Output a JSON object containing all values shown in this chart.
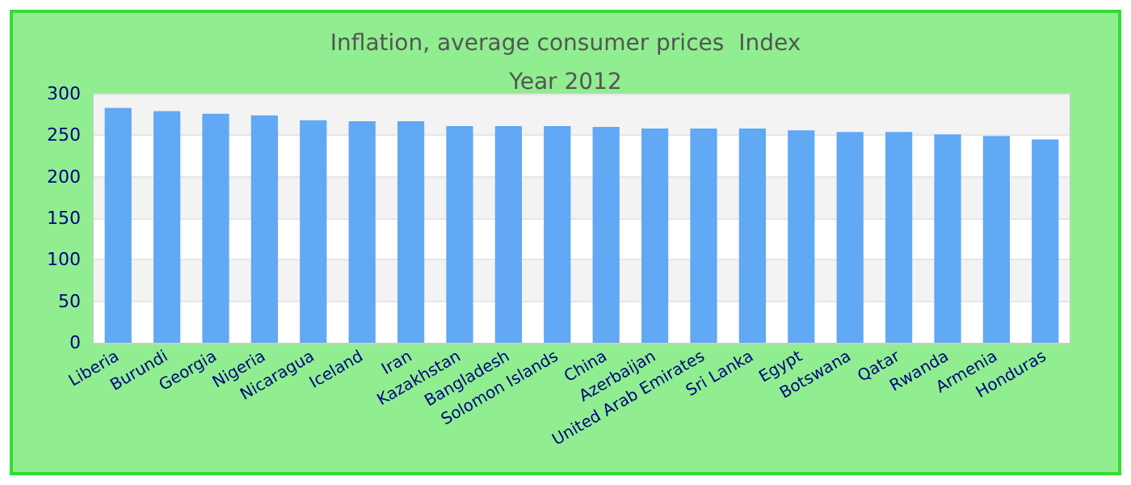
{
  "chart_data": {
    "type": "bar",
    "title": "Inflation, average consumer prices  Index",
    "subtitle": "Year 2012",
    "categories": [
      "Liberia",
      "Burundi",
      "Georgia",
      "Nigeria",
      "Nicaragua",
      "Iceland",
      "Iran",
      "Kazakhstan",
      "Bangladesh",
      "Solomon Islands",
      "China",
      "Azerbaijan",
      "United Arab Emirates",
      "Sri Lanka",
      "Egypt",
      "Botswana",
      "Qatar",
      "Rwanda",
      "Armenia",
      "Honduras"
    ],
    "values": [
      283,
      279,
      276,
      274,
      268,
      267,
      267,
      261,
      261,
      261,
      260,
      258,
      258,
      258,
      256,
      254,
      254,
      251,
      249,
      245
    ],
    "color": "#61a8f5",
    "ylim": [
      0,
      300
    ],
    "yticks": [
      0,
      50,
      100,
      150,
      200,
      250,
      300
    ],
    "grid": "y"
  }
}
